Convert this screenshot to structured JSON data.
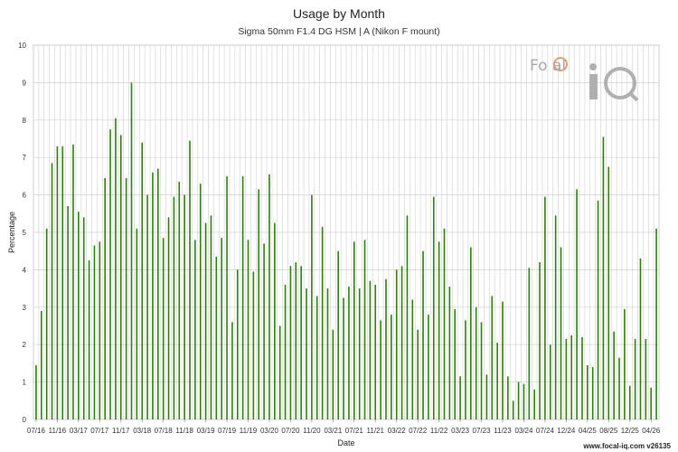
{
  "chart_data": {
    "type": "bar",
    "title": "Usage by Month",
    "subtitle": "Sigma 50mm F1.4 DG HSM | A (Nikon F mount)",
    "xlabel": "Date",
    "ylabel": "Percentage",
    "ylim": [
      0,
      10
    ],
    "yticks": [
      "0",
      "1",
      "2",
      "3",
      "4",
      "5",
      "6",
      "7",
      "8",
      "9",
      "10"
    ],
    "grid": true,
    "bar_color": "#2e7d0e",
    "x_tick_labels": [
      "07/16",
      "11/16",
      "03/17",
      "07/17",
      "11/17",
      "03/18",
      "07/18",
      "11/18",
      "03/19",
      "07/19",
      "11/19",
      "03/20",
      "07/20",
      "11/20",
      "03/21",
      "07/21",
      "11/21",
      "03/22",
      "07/22",
      "11/22",
      "03/23",
      "07/23",
      "11/23",
      "03/24",
      "07/24",
      "12/24",
      "04/25",
      "08/25",
      "12/25",
      "04/26"
    ],
    "values": [
      1.45,
      2.9,
      5.1,
      6.85,
      7.3,
      7.3,
      5.7,
      7.35,
      5.55,
      5.4,
      4.25,
      4.65,
      4.75,
      6.45,
      7.75,
      8.05,
      7.6,
      6.45,
      9.0,
      5.1,
      7.4,
      6.0,
      6.6,
      6.7,
      4.85,
      5.4,
      5.95,
      6.35,
      6.0,
      7.45,
      4.8,
      6.3,
      5.25,
      5.45,
      4.35,
      4.85,
      6.5,
      2.6,
      4.0,
      6.5,
      4.8,
      3.95,
      6.15,
      4.7,
      6.55,
      5.25,
      2.5,
      3.6,
      4.1,
      4.2,
      4.1,
      3.5,
      6.0,
      3.3,
      5.15,
      3.5,
      2.4,
      4.5,
      3.25,
      3.55,
      4.75,
      3.5,
      4.8,
      3.7,
      3.6,
      2.65,
      3.75,
      2.8,
      4.0,
      4.1,
      5.45,
      3.2,
      2.4,
      4.5,
      2.8,
      5.95,
      4.75,
      5.1,
      3.55,
      2.95,
      1.15,
      2.65,
      4.6,
      3.0,
      2.6,
      1.2,
      3.3,
      2.05,
      3.15,
      1.15,
      0.5,
      1.0,
      0.95,
      4.05,
      0.8,
      4.2,
      5.95,
      2.0,
      5.45,
      4.6,
      2.15,
      2.25,
      6.15,
      2.2,
      1.45,
      1.4,
      5.85,
      7.55,
      6.75,
      2.35,
      1.65,
      2.95,
      0.9,
      2.15,
      4.3,
      2.15,
      0.85,
      5.1
    ]
  },
  "watermark": {
    "logo_text": "Focal iQ",
    "footer": "www.focal-iq.com  v26135"
  }
}
